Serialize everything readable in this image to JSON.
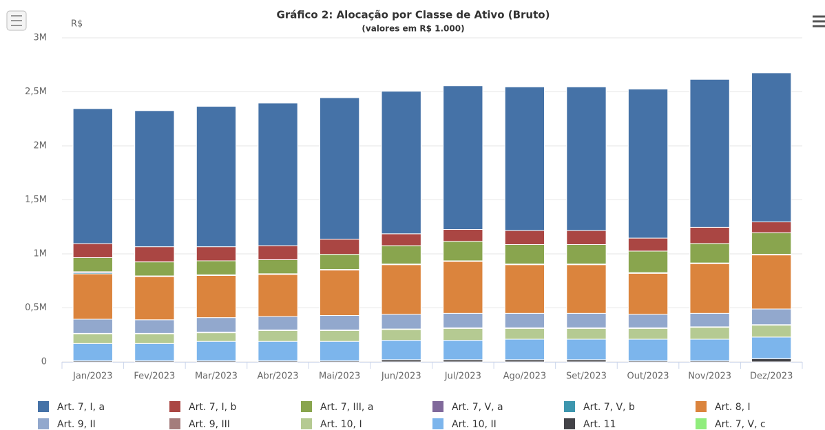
{
  "chart_data": {
    "type": "stacked_bar",
    "title": "Gráfico 2: Alocação por Classe de Ativo (Bruto)",
    "subtitle": "(valores em R$ 1.000)",
    "y_label": "R$",
    "categories": [
      "Jan/2023",
      "Fev/2023",
      "Mar/2023",
      "Abr/2023",
      "Mai/2023",
      "Jun/2023",
      "Jul/2023",
      "Ago/2023",
      "Set/2023",
      "Out/2023",
      "Nov/2023",
      "Dez/2023"
    ],
    "ylim": [
      0,
      3000000
    ],
    "yticks": [
      0,
      {
        "value": 500000,
        "label": "0,5M"
      },
      {
        "value": 1000000,
        "label": "1M"
      },
      {
        "value": 1500000,
        "label": "1,5M"
      },
      {
        "value": 2000000,
        "label": "2M"
      },
      {
        "value": 2500000,
        "label": "2,5M"
      },
      {
        "value": 3000000,
        "label": "3M"
      }
    ],
    "grid": true,
    "series": [
      {
        "name": "Art. 7, I, a",
        "color": "#4572a7",
        "values": [
          1250000,
          1260000,
          1300000,
          1320000,
          1310000,
          1320000,
          1330000,
          1330000,
          1330000,
          1380000,
          1370000,
          1380000
        ]
      },
      {
        "name": "Art. 7, I, b",
        "color": "#aa4643",
        "values": [
          130000,
          140000,
          130000,
          130000,
          140000,
          110000,
          110000,
          130000,
          130000,
          120000,
          150000,
          100000
        ]
      },
      {
        "name": "Art. 7, III, a",
        "color": "#89a54e",
        "values": [
          130000,
          130000,
          130000,
          130000,
          140000,
          170000,
          180000,
          180000,
          180000,
          200000,
          180000,
          200000
        ]
      },
      {
        "name": "Art. 7, V, a",
        "color": "#80699b",
        "values": [
          10000,
          3000,
          3000,
          3000,
          3000,
          3000,
          3000,
          3000,
          3000,
          3000,
          3000,
          3000
        ]
      },
      {
        "name": "Art. 7, V, b",
        "color": "#3d96ae",
        "values": [
          10000,
          3000,
          3000,
          3000,
          3000,
          3000,
          3000,
          3000,
          3000,
          3000,
          3000,
          3000
        ]
      },
      {
        "name": "Art. 8, I",
        "color": "#db843d",
        "values": [
          420000,
          400000,
          390000,
          390000,
          420000,
          460000,
          480000,
          450000,
          450000,
          380000,
          460000,
          500000
        ]
      },
      {
        "name": "Art. 9, II",
        "color": "#92a8cd",
        "values": [
          130000,
          125000,
          135000,
          125000,
          135000,
          135000,
          135000,
          135000,
          135000,
          125000,
          125000,
          145000
        ]
      },
      {
        "name": "Art. 9, III",
        "color": "#a47d7c",
        "values": [
          5000,
          5000,
          5000,
          5000,
          5000,
          5000,
          5000,
          5000,
          5000,
          5000,
          5000,
          5000
        ]
      },
      {
        "name": "Art. 10, I",
        "color": "#b5ca92",
        "values": [
          90000,
          90000,
          80000,
          100000,
          100000,
          100000,
          110000,
          100000,
          100000,
          100000,
          110000,
          110000
        ]
      },
      {
        "name": "Art. 10, II",
        "color": "#7cb5ec",
        "values": [
          160000,
          160000,
          180000,
          180000,
          180000,
          180000,
          180000,
          190000,
          190000,
          200000,
          200000,
          200000
        ]
      },
      {
        "name": "Art. 11",
        "color": "#434348",
        "values": [
          10000,
          10000,
          10000,
          10000,
          10000,
          20000,
          20000,
          20000,
          20000,
          10000,
          10000,
          30000
        ]
      },
      {
        "name": "Art. 7, V, c",
        "color": "#90ed7d",
        "values": [
          0,
          0,
          0,
          0,
          0,
          0,
          0,
          0,
          0,
          0,
          0,
          0
        ]
      }
    ]
  }
}
